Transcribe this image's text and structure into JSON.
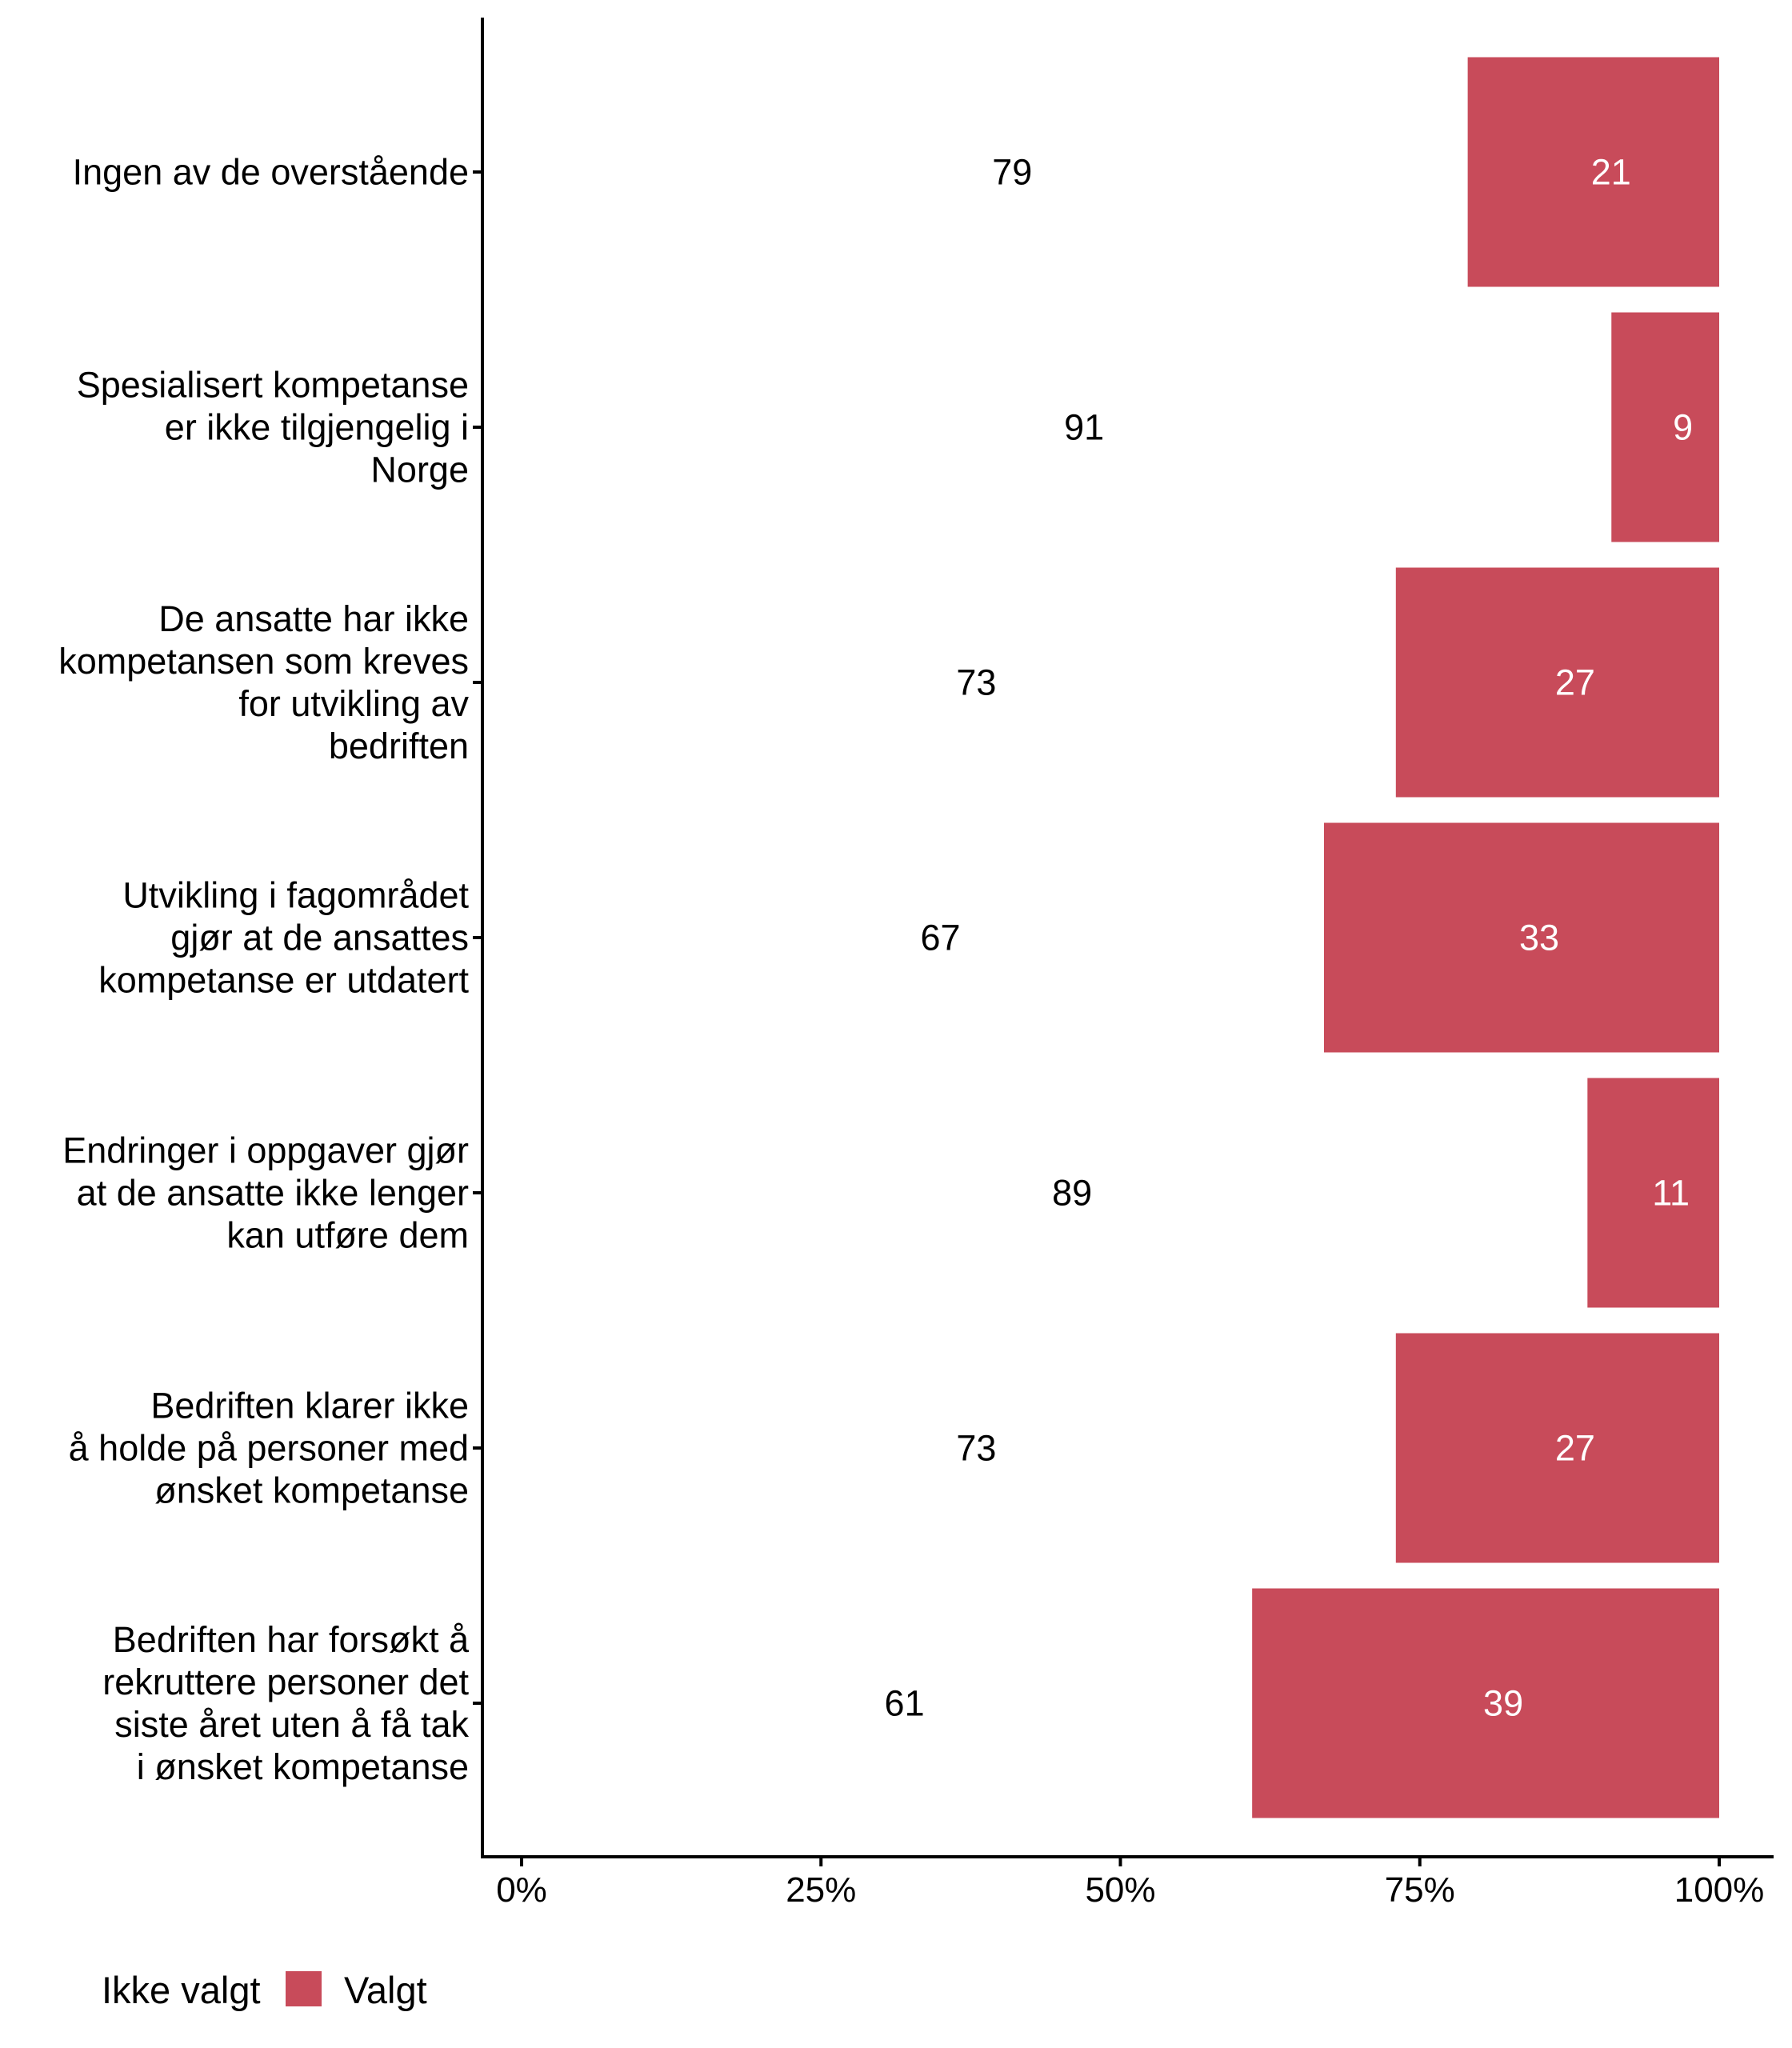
{
  "chart_data": {
    "type": "bar",
    "orientation": "horizontal",
    "stacked": "percent",
    "title": "",
    "xlabel": "",
    "ylabel": "",
    "xlim": [
      0,
      100
    ],
    "grid": false,
    "legend_position": "bottom-left",
    "x_ticks": [
      0,
      25,
      50,
      75,
      100
    ],
    "x_tick_labels": [
      "0%",
      "25%",
      "50%",
      "75%",
      "100%"
    ],
    "categories": [
      [
        "Ingen av de overstående"
      ],
      [
        "Spesialisert kompetanse",
        "er ikke tilgjengelig i",
        "Norge"
      ],
      [
        "De ansatte har ikke",
        "kompetansen som kreves",
        "for utvikling av",
        "bedriften"
      ],
      [
        "Utvikling i fagområdet",
        "gjør at de ansattes",
        "kompetanse er utdatert"
      ],
      [
        "Endringer i oppgaver gjør",
        "at de ansatte ikke lenger",
        "kan utføre dem"
      ],
      [
        "Bedriften klarer ikke",
        "å holde på personer med",
        "ønsket kompetanse"
      ],
      [
        "Bedriften har forsøkt å",
        "rekruttere personer det",
        "siste året uten å få tak",
        "i ønsket kompetanse"
      ]
    ],
    "series": [
      {
        "name": "Ikke valgt",
        "color": "#FFFFFF",
        "label_color": "#000000",
        "values": [
          79,
          91,
          73,
          67,
          89,
          73,
          61
        ]
      },
      {
        "name": "Valgt",
        "color": "#C84B5A",
        "label_color": "#FFFFFF",
        "values": [
          21,
          9,
          27,
          33,
          11,
          27,
          39
        ]
      }
    ]
  },
  "legend": {
    "items": [
      {
        "label": "Ikke valgt",
        "color": "#FFFFFF"
      },
      {
        "label": "Valgt",
        "color": "#C84B5A"
      }
    ]
  }
}
